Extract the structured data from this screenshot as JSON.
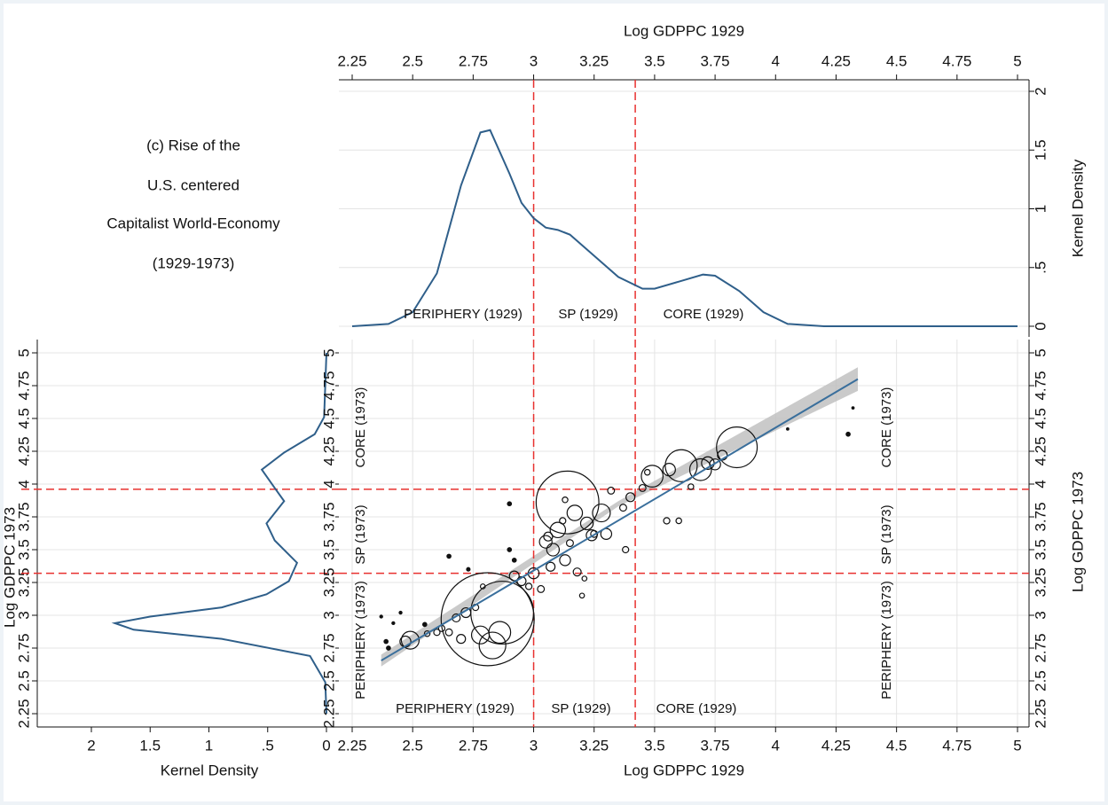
{
  "title": [
    "(c) Rise of the",
    "U.S. centered",
    "Capitalist World-Economy",
    "(1929-1973)"
  ],
  "chart_data": [
    {
      "type": "line",
      "xlabel": "Log GDPPC 1929",
      "ylabel": "Kernel Density",
      "x": [
        2.25,
        2.4,
        2.5,
        2.6,
        2.7,
        2.78,
        2.82,
        2.9,
        2.95,
        3.0,
        3.05,
        3.1,
        3.15,
        3.25,
        3.35,
        3.45,
        3.5,
        3.6,
        3.7,
        3.75,
        3.85,
        3.95,
        4.05,
        4.2,
        5
      ],
      "values": [
        0,
        0.02,
        0.12,
        0.45,
        1.2,
        1.65,
        1.67,
        1.3,
        1.05,
        0.92,
        0.84,
        0.82,
        0.78,
        0.6,
        0.42,
        0.32,
        0.32,
        0.38,
        0.44,
        0.43,
        0.3,
        0.12,
        0.02,
        0,
        0
      ],
      "color": "#2f5f8a",
      "xlim": [
        2.25,
        5
      ],
      "xticks": [
        2.25,
        2.5,
        2.75,
        3,
        3.25,
        3.5,
        3.75,
        4,
        4.25,
        4.5,
        4.75,
        5
      ],
      "ylim": [
        0,
        2
      ],
      "yticks": [
        0,
        {
          "value": 0.5,
          "label": ".5"
        },
        1,
        1.5,
        2
      ],
      "grid": true,
      "vlines": [
        3,
        3.42
      ],
      "ref_color": "#e8312f",
      "annotations": [
        "PERIPHERY (1929)",
        "SP (1929)",
        "CORE (1929)"
      ]
    },
    {
      "type": "line",
      "orientation": "horizontal",
      "xlabel": "Kernel Density",
      "ylabel": "Log GDPPC 1973",
      "y": [
        2.25,
        2.49,
        2.69,
        2.82,
        2.89,
        2.94,
        2.99,
        3.06,
        3.16,
        3.26,
        3.4,
        3.57,
        3.7,
        3.87,
        3.97,
        4.11,
        4.24,
        4.38,
        4.51,
        5
      ],
      "values": [
        0,
        0.01,
        0.14,
        0.89,
        1.64,
        1.8,
        1.5,
        0.89,
        0.51,
        0.32,
        0.25,
        0.44,
        0.51,
        0.36,
        0.44,
        0.55,
        0.36,
        0.1,
        0.02,
        0
      ],
      "color": "#2f5f8a",
      "xlim": [
        2,
        0
      ],
      "xticks": [
        2,
        1.5,
        1,
        {
          "value": 0.5,
          "label": ".5"
        },
        0
      ],
      "ylim": [
        2.25,
        5
      ],
      "yticks": [
        2.25,
        2.5,
        2.75,
        3,
        3.25,
        3.5,
        3.75,
        4,
        4.25,
        4.5,
        4.75,
        5
      ],
      "grid": true,
      "hlines": [
        3.32,
        3.96
      ],
      "ref_color": "#e8312f"
    },
    {
      "type": "scatter",
      "xlabel": "Log GDPPC 1929",
      "ylabel": "Log GDPPC 1973",
      "x": [
        2.81,
        2.87,
        2.83,
        2.86,
        2.78,
        3.14,
        3.84,
        3.61,
        3.49,
        3.69,
        2.49,
        2.47,
        3.17,
        3.28,
        3.1,
        3.05,
        3.22,
        3.4,
        3.56,
        3.72,
        3.75,
        3.78,
        3.24,
        3.3,
        3.08,
        3.13,
        3.0,
        2.92,
        2.95,
        3.07,
        3.18,
        3.03,
        2.98,
        2.72,
        2.68,
        2.65,
        2.7,
        2.6,
        2.62,
        2.55,
        2.42,
        2.45,
        2.37,
        2.39,
        2.4,
        2.56,
        2.76,
        2.79,
        2.9,
        2.92,
        2.9,
        2.65,
        2.73,
        3.2,
        3.38,
        3.21,
        3.55,
        3.6,
        3.65,
        3.45,
        3.37,
        3.13,
        3.12,
        3.06,
        3.15,
        4.3,
        4.32,
        4.05,
        3.32,
        3.47,
        3.25
      ],
      "y": [
        2.97,
        3.02,
        2.77,
        2.87,
        2.85,
        3.86,
        4.28,
        4.14,
        4.06,
        4.11,
        2.81,
        2.8,
        3.78,
        3.78,
        3.65,
        3.56,
        3.7,
        3.9,
        4.11,
        4.16,
        4.15,
        4.22,
        3.61,
        3.62,
        3.5,
        3.42,
        3.32,
        3.3,
        3.26,
        3.37,
        3.33,
        3.2,
        3.22,
        3.02,
        2.98,
        2.87,
        2.82,
        2.87,
        2.9,
        2.93,
        2.94,
        3.02,
        2.99,
        2.8,
        2.75,
        2.86,
        3.06,
        3.22,
        3.5,
        3.42,
        3.85,
        3.45,
        3.35,
        3.15,
        3.5,
        3.28,
        3.72,
        3.72,
        3.98,
        3.97,
        3.82,
        3.88,
        3.72,
        3.6,
        3.55,
        4.38,
        4.58,
        4.42,
        3.95,
        4.09,
        3.62
      ],
      "sizes": [
        110,
        50,
        9,
        6,
        4,
        50,
        21,
        13,
        6,
        6,
        4,
        1.5,
        3,
        4,
        3,
        2,
        2,
        1,
        2,
        2,
        1.5,
        1.2,
        1.5,
        1.5,
        2,
        1.5,
        1.5,
        1.2,
        1,
        1,
        0.8,
        0.6,
        0.5,
        1.2,
        0.8,
        0.6,
        1,
        0.5,
        0.5,
        0.2,
        0.1,
        0.1,
        0.1,
        0.2,
        0.2,
        0.4,
        0.5,
        0.3,
        0.2,
        0.2,
        0.2,
        0.2,
        0.15,
        0.3,
        0.5,
        0.3,
        0.5,
        0.4,
        0.4,
        0.6,
        0.6,
        0.4,
        0.5,
        1,
        0.6,
        0.2,
        0.05,
        0.03,
        0.6,
        0.4,
        0.6
      ],
      "fit": {
        "x": [
          2.37,
          4.34
        ],
        "y": [
          2.655,
          4.8
        ]
      },
      "ci": {
        "x": [
          2.37,
          3.35,
          4.34
        ],
        "lower": [
          2.61,
          3.83,
          4.71
        ],
        "upper": [
          2.7,
          3.87,
          4.89
        ]
      },
      "fit_color": "#3a6f9c",
      "ci_color": "#bdbdbd",
      "xlim": [
        2.25,
        5
      ],
      "xticks": [
        2.25,
        2.5,
        2.75,
        3,
        3.25,
        3.5,
        3.75,
        4,
        4.25,
        4.5,
        4.75,
        5
      ],
      "ylim": [
        2.25,
        5
      ],
      "yticks": [
        2.25,
        2.5,
        2.75,
        3,
        3.25,
        3.5,
        3.75,
        4,
        4.25,
        4.5,
        4.75,
        5
      ],
      "grid": true,
      "vlines": [
        3,
        3.42
      ],
      "hlines": [
        3.32,
        3.96
      ],
      "ref_color": "#e8312f",
      "annotations": [
        "PERIPHERY (1929)",
        "SP (1929)",
        "CORE (1929)",
        "PERIPHERY (1973)",
        "SP (1973)",
        "CORE (1973)"
      ]
    }
  ]
}
